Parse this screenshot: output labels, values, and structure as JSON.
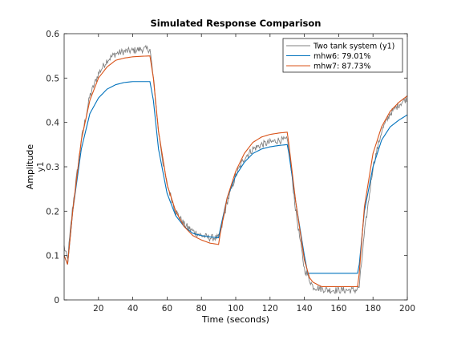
{
  "chart_data": {
    "type": "line",
    "title": "Simulated Response Comparison",
    "xlabel": "Time (seconds)",
    "ylabel": "Amplitude",
    "ylabel_sub": "y1",
    "xlim": [
      0,
      200
    ],
    "ylim": [
      0,
      0.6
    ],
    "xticks": [
      20,
      40,
      60,
      80,
      100,
      120,
      140,
      160,
      180,
      200
    ],
    "yticks": [
      0,
      0.1,
      0.2,
      0.3,
      0.4,
      0.5,
      0.6
    ],
    "grid": false,
    "legend_position": "top-right",
    "series": [
      {
        "name": "Two tank system (y1)",
        "color": "#808080",
        "noisy": true,
        "x": [
          0,
          2,
          5,
          10,
          15,
          20,
          25,
          30,
          35,
          40,
          45,
          50,
          52,
          55,
          58,
          60,
          65,
          70,
          75,
          80,
          85,
          90,
          91,
          95,
          100,
          105,
          110,
          115,
          120,
          125,
          130,
          131,
          135,
          140,
          145,
          150,
          155,
          160,
          165,
          170,
          172,
          175,
          180,
          185,
          190,
          195,
          200
        ],
        "values": [
          0.12,
          0.09,
          0.21,
          0.36,
          0.46,
          0.51,
          0.54,
          0.555,
          0.56,
          0.562,
          0.565,
          0.565,
          0.5,
          0.38,
          0.3,
          0.26,
          0.2,
          0.17,
          0.155,
          0.145,
          0.14,
          0.14,
          0.15,
          0.22,
          0.28,
          0.32,
          0.34,
          0.35,
          0.355,
          0.36,
          0.36,
          0.34,
          0.2,
          0.07,
          0.03,
          0.025,
          0.022,
          0.022,
          0.022,
          0.022,
          0.03,
          0.15,
          0.3,
          0.38,
          0.42,
          0.44,
          0.455
        ]
      },
      {
        "name": "mhw6: 79.01%",
        "color": "#0072BD",
        "noisy": false,
        "x": [
          0,
          2,
          5,
          10,
          15,
          20,
          25,
          30,
          35,
          40,
          45,
          50,
          52,
          55,
          60,
          65,
          70,
          75,
          80,
          85,
          90,
          91,
          95,
          100,
          105,
          110,
          115,
          120,
          125,
          130,
          131,
          135,
          140,
          142,
          145,
          150,
          160,
          171,
          172,
          175,
          180,
          185,
          190,
          195,
          200
        ],
        "values": [
          0.1,
          0.08,
          0.2,
          0.34,
          0.42,
          0.455,
          0.475,
          0.485,
          0.49,
          0.492,
          0.492,
          0.492,
          0.45,
          0.34,
          0.24,
          0.19,
          0.165,
          0.15,
          0.145,
          0.142,
          0.14,
          0.16,
          0.23,
          0.28,
          0.31,
          0.33,
          0.34,
          0.345,
          0.348,
          0.35,
          0.33,
          0.22,
          0.1,
          0.06,
          0.06,
          0.06,
          0.06,
          0.06,
          0.08,
          0.2,
          0.3,
          0.36,
          0.39,
          0.405,
          0.417
        ]
      },
      {
        "name": "mhw7: 87.73%",
        "color": "#D95319",
        "noisy": false,
        "x": [
          0,
          2,
          5,
          10,
          15,
          20,
          25,
          30,
          35,
          40,
          45,
          50,
          52,
          55,
          60,
          65,
          70,
          75,
          80,
          85,
          90,
          91,
          95,
          100,
          105,
          110,
          115,
          120,
          125,
          130,
          131,
          135,
          140,
          143,
          145,
          150,
          160,
          171,
          172,
          175,
          180,
          185,
          190,
          195,
          200
        ],
        "values": [
          0.1,
          0.08,
          0.2,
          0.36,
          0.45,
          0.5,
          0.525,
          0.54,
          0.545,
          0.548,
          0.549,
          0.55,
          0.5,
          0.38,
          0.26,
          0.2,
          0.165,
          0.145,
          0.135,
          0.128,
          0.125,
          0.15,
          0.23,
          0.29,
          0.33,
          0.355,
          0.367,
          0.373,
          0.376,
          0.378,
          0.35,
          0.22,
          0.09,
          0.05,
          0.04,
          0.03,
          0.03,
          0.03,
          0.06,
          0.21,
          0.33,
          0.39,
          0.425,
          0.445,
          0.46
        ]
      }
    ]
  }
}
